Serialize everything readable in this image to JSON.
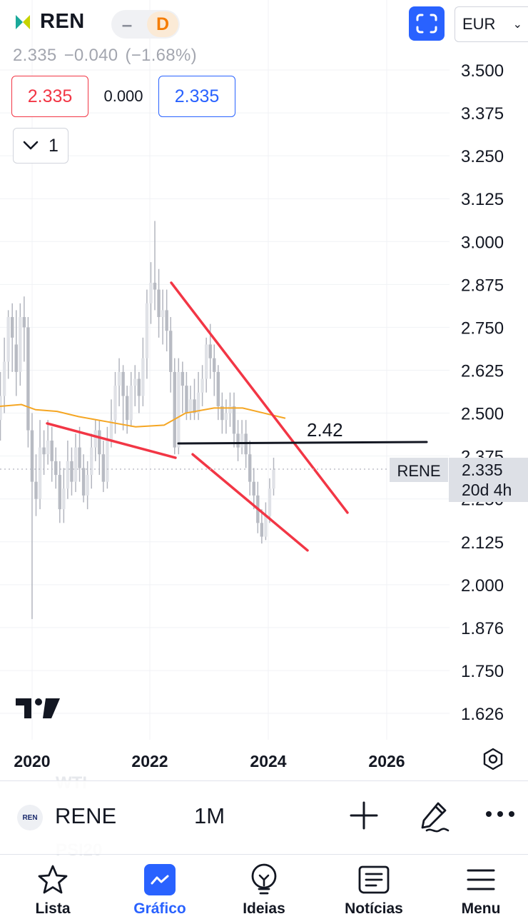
{
  "header": {
    "symbol": "REN",
    "interval_badge": "D",
    "currency": "EUR"
  },
  "quote": {
    "last": "2.335",
    "change": "−0.040",
    "change_pct": "(−1.68%)",
    "bid": "2.335",
    "spread": "0.000",
    "ask": "2.335"
  },
  "indicators_button": {
    "count": "1"
  },
  "chart": {
    "y_ticks": [
      "3.500",
      "3.375",
      "3.250",
      "3.125",
      "3.000",
      "2.875",
      "2.750",
      "2.625",
      "2.500",
      "2.375",
      "2.250",
      "2.125",
      "2.000",
      "1.876",
      "1.750",
      "1.626"
    ],
    "x_ticks": [
      "2020",
      "2022",
      "2024",
      "2026"
    ],
    "annotation_text": "2.42",
    "last_price_label": {
      "symbol": "RENE",
      "price": "2.335",
      "countdown": "20d 4h"
    },
    "colors": {
      "trendline": "#f23645",
      "moving_average": "#f5a623",
      "horizontal_line": "#131722",
      "candles": "#c8cad0"
    }
  },
  "symbol_bar": {
    "ghost_above": "WTI",
    "symbol": "RENE",
    "interval": "1M",
    "ghost_below": "PSI20",
    "icons": [
      "plus-icon",
      "brush-icon",
      "more-icon"
    ]
  },
  "nav": {
    "items": [
      {
        "label": "Lista",
        "icon": "star-icon"
      },
      {
        "label": "Gráfico",
        "icon": "chart-icon",
        "active": true
      },
      {
        "label": "Ideias",
        "icon": "lightbulb-icon"
      },
      {
        "label": "Notícias",
        "icon": "news-icon"
      },
      {
        "label": "Menu",
        "icon": "menu-icon"
      }
    ]
  }
}
